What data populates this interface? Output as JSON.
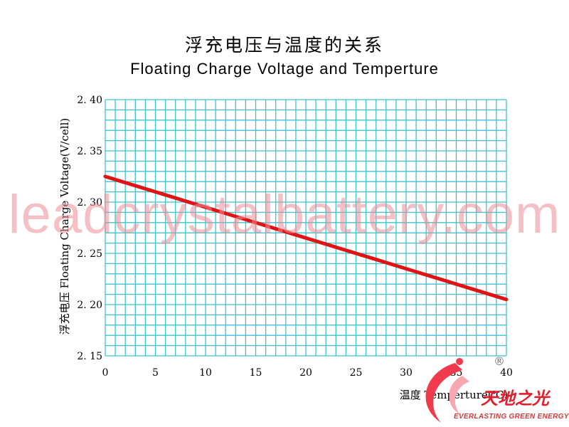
{
  "chart_data": {
    "type": "line",
    "title": "浮充电压与温度的关系",
    "subtitle": "Floating Charge Voltage and Temperture",
    "xlabel": "温度  Temperture(℃)",
    "ylabel": "浮充电压  Floating Charge Voltage(V/cell)",
    "x_ticks": [
      "0",
      "5",
      "10",
      "15",
      "20",
      "25",
      "30",
      "35",
      "40"
    ],
    "y_ticks": [
      "2. 15",
      "2. 20",
      "2. 25",
      "2. 30",
      "2. 35",
      "2. 40"
    ],
    "xlim": [
      0,
      40
    ],
    "ylim": [
      2.15,
      2.4
    ],
    "grid": true,
    "series": [
      {
        "x": [
          0,
          40
        ],
        "y": [
          2.325,
          2.205
        ]
      }
    ],
    "colors": {
      "line": "#e01414",
      "grid": "#3ec3cc"
    }
  },
  "watermark": "leadcrystalbattery.com",
  "logo": {
    "name_cn": "天地之光",
    "tagline": "EVERLASTING GREEN ENERGY",
    "registered_mark": "®"
  }
}
